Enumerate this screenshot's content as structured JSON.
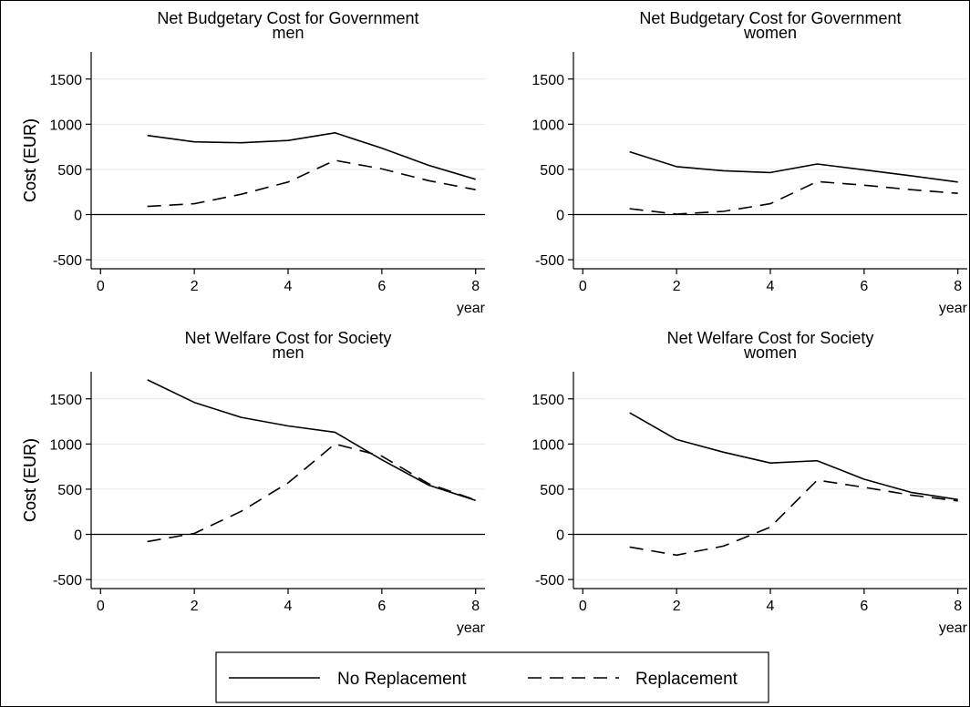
{
  "chart_data": [
    {
      "type": "line",
      "title": "Net Budgetary Cost for Government",
      "subtitle": "men",
      "xlabel": "year",
      "ylabel": "Cost (EUR)",
      "xlim": [
        -0.2,
        8.2
      ],
      "ylim": [
        -600,
        1800
      ],
      "xticks": [
        0,
        2,
        4,
        6,
        8
      ],
      "yticks": [
        -500,
        0,
        500,
        1000,
        1500
      ],
      "x": [
        1,
        2,
        3,
        4,
        5,
        6,
        7,
        8
      ],
      "series": [
        {
          "name": "No Replacement",
          "style": "solid",
          "values": [
            875,
            805,
            795,
            820,
            905,
            735,
            545,
            390
          ]
        },
        {
          "name": "Replacement",
          "style": "dashed",
          "values": [
            90,
            120,
            225,
            360,
            600,
            505,
            375,
            275
          ]
        }
      ]
    },
    {
      "type": "line",
      "title": "Net Budgetary Cost for Government",
      "subtitle": "women",
      "xlabel": "year",
      "ylabel": "Cost (EUR)",
      "xlim": [
        -0.2,
        8.2
      ],
      "ylim": [
        -600,
        1800
      ],
      "xticks": [
        0,
        2,
        4,
        6,
        8
      ],
      "yticks": [
        -500,
        0,
        500,
        1000,
        1500
      ],
      "x": [
        1,
        2,
        3,
        4,
        5,
        6,
        7,
        8
      ],
      "series": [
        {
          "name": "No Replacement",
          "style": "solid",
          "values": [
            695,
            530,
            485,
            465,
            560,
            495,
            430,
            360
          ]
        },
        {
          "name": "Replacement",
          "style": "dashed",
          "values": [
            65,
            5,
            35,
            120,
            365,
            325,
            275,
            235
          ]
        }
      ]
    },
    {
      "type": "line",
      "title": "Net Welfare Cost for Society",
      "subtitle": "men",
      "xlabel": "year",
      "ylabel": "Cost (EUR)",
      "xlim": [
        -0.2,
        8.2
      ],
      "ylim": [
        -600,
        1800
      ],
      "xticks": [
        0,
        2,
        4,
        6,
        8
      ],
      "yticks": [
        -500,
        0,
        500,
        1000,
        1500
      ],
      "x": [
        1,
        2,
        3,
        4,
        5,
        6,
        7,
        8
      ],
      "series": [
        {
          "name": "No Replacement",
          "style": "solid",
          "values": [
            1710,
            1460,
            1295,
            1200,
            1130,
            825,
            545,
            375
          ]
        },
        {
          "name": "Replacement",
          "style": "dashed",
          "values": [
            -80,
            10,
            255,
            570,
            1000,
            865,
            560,
            380
          ]
        }
      ]
    },
    {
      "type": "line",
      "title": "Net Welfare Cost for Society",
      "subtitle": "women",
      "xlabel": "year",
      "ylabel": "Cost (EUR)",
      "xlim": [
        -0.2,
        8.2
      ],
      "ylim": [
        -600,
        1800
      ],
      "xticks": [
        0,
        2,
        4,
        6,
        8
      ],
      "yticks": [
        -500,
        0,
        500,
        1000,
        1500
      ],
      "x": [
        1,
        2,
        3,
        4,
        5,
        6,
        7,
        8
      ],
      "series": [
        {
          "name": "No Replacement",
          "style": "solid",
          "values": [
            1345,
            1050,
            910,
            790,
            815,
            610,
            465,
            385
          ]
        },
        {
          "name": "Replacement",
          "style": "dashed",
          "values": [
            -140,
            -230,
            -130,
            80,
            600,
            520,
            435,
            370
          ]
        }
      ]
    }
  ],
  "legend": {
    "placement": "bottom-center",
    "items": [
      {
        "label": "No Replacement",
        "style": "solid"
      },
      {
        "label": "Replacement",
        "style": "dashed"
      }
    ]
  },
  "colors": {
    "line": "#000000",
    "grid": "#e6e6e6",
    "background": "#ffffff"
  }
}
